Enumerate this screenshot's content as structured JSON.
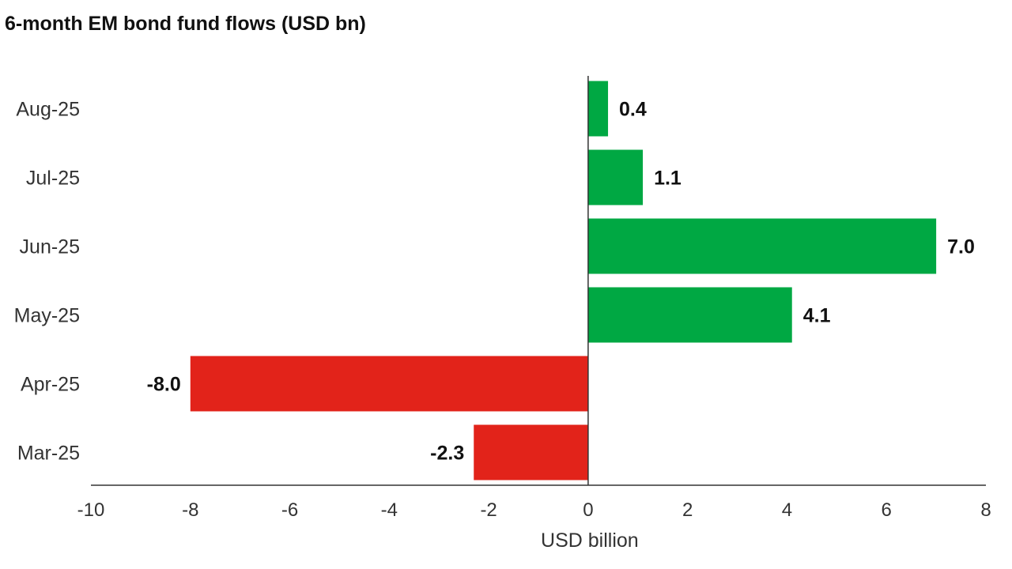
{
  "chart_data": {
    "type": "bar",
    "orientation": "horizontal",
    "title": "6-month EM bond fund flows (USD bn)",
    "xlabel": "USD billion",
    "ylabel": "",
    "categories": [
      "Aug-25",
      "Jul-25",
      "Jun-25",
      "May-25",
      "Apr-25",
      "Mar-25"
    ],
    "values": [
      0.4,
      1.1,
      7.0,
      4.1,
      -8.0,
      -2.3
    ],
    "value_labels": [
      "0.4",
      "1.1",
      "7.0",
      "4.1",
      "-8.0",
      "-2.3"
    ],
    "xlim": [
      -10,
      8
    ],
    "xticks": [
      -10,
      -8,
      -6,
      -4,
      -2,
      0,
      2,
      4,
      6,
      8
    ],
    "xtick_labels": [
      "-10",
      "-8",
      "-6",
      "-4",
      "-2",
      "0",
      "2",
      "4",
      "6",
      "8"
    ],
    "grid": false,
    "legend": "none",
    "colors": {
      "positive": "#00a843",
      "negative": "#e2231a",
      "axis": "#333333"
    }
  }
}
